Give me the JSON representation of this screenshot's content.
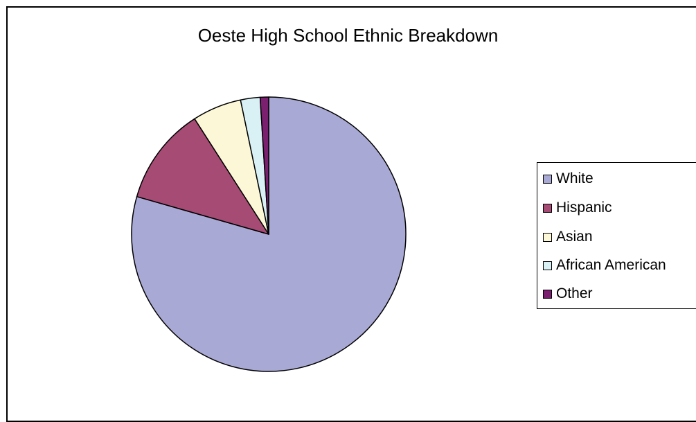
{
  "chart_data": {
    "type": "pie",
    "title": "Oeste High School Ethnic Breakdown",
    "categories": [
      "White",
      "Hispanic",
      "Asian",
      "African American",
      "Other"
    ],
    "values": [
      79.5,
      11.5,
      5.8,
      2.3,
      1.0
    ],
    "unit": "percent (estimated)",
    "colors": [
      "#a9a9d5",
      "#a54b74",
      "#fcf8d7",
      "#d9f1f5",
      "#7a206f"
    ],
    "start_angle": "12 o'clock",
    "direction": "clockwise",
    "legend_position": "right",
    "show_legend": true
  }
}
